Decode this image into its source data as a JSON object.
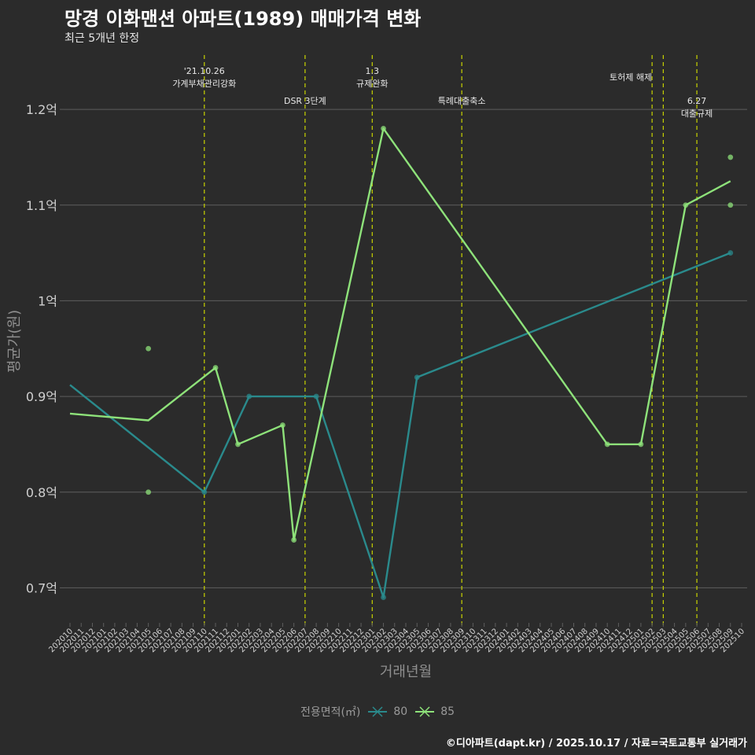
{
  "title": "망경 이화맨션 아파트(1989) 매매가격 변화",
  "subtitle": "최근 5개년 한정",
  "caption": "©디아파트(dapt.kr) / 2025.10.17 / 자료=국토교통부 실거래가",
  "colors": {
    "background": "#2b2b2b",
    "grid": "#5e5e5e",
    "event_line": "#c8d400",
    "series_80": "#2a8a8c",
    "series_85": "#8ee27a",
    "axis_text": "#d0d0d0",
    "axis_title": "#8f8f8f"
  },
  "chart_data": {
    "type": "line",
    "title": "망경 이화맨션 아파트(1989) 매매가격 변화",
    "subtitle": "최근 5개년 한정",
    "xlabel": "거래년월",
    "ylabel": "평균가(원)",
    "ylim": [
      0.665,
      1.265
    ],
    "y_ticks": [
      0.7,
      0.8,
      0.9,
      1.0,
      1.1,
      1.2
    ],
    "y_tick_labels": [
      "0.7억",
      "0.8억",
      "0.9억",
      "1억",
      "1.1억",
      "1.2억"
    ],
    "x_categories": [
      "202010",
      "202011",
      "202012",
      "202101",
      "202102",
      "202103",
      "202104",
      "202105",
      "202106",
      "202107",
      "202108",
      "202109",
      "202110",
      "202111",
      "202112",
      "202201",
      "202202",
      "202203",
      "202204",
      "202205",
      "202206",
      "202207",
      "202208",
      "202209",
      "202210",
      "202211",
      "202212",
      "202301",
      "202302",
      "202303",
      "202304",
      "202305",
      "202306",
      "202307",
      "202308",
      "202309",
      "202310",
      "202311",
      "202312",
      "202401",
      "202402",
      "202403",
      "202404",
      "202405",
      "202406",
      "202407",
      "202408",
      "202409",
      "202410",
      "202411",
      "202412",
      "202501",
      "202502",
      "202503",
      "202504",
      "202505",
      "202506",
      "202507",
      "202508",
      "202509",
      "202510"
    ],
    "legend_title": "전용면적(㎡)",
    "series": [
      {
        "name": "80",
        "color": "#2a8a8c",
        "line": [
          {
            "x": "202010",
            "y": 0.912
          },
          {
            "x": "202110",
            "y": 0.8
          },
          {
            "x": "202202",
            "y": 0.9
          },
          {
            "x": "202208",
            "y": 0.9
          },
          {
            "x": "202302",
            "y": 0.69
          },
          {
            "x": "202305",
            "y": 0.92
          },
          {
            "x": "202509",
            "y": 1.05
          }
        ],
        "points": [
          {
            "x": "202110",
            "y": 0.8
          },
          {
            "x": "202202",
            "y": 0.9
          },
          {
            "x": "202208",
            "y": 0.9
          },
          {
            "x": "202302",
            "y": 0.69
          },
          {
            "x": "202305",
            "y": 0.92
          },
          {
            "x": "202509",
            "y": 1.05
          }
        ]
      },
      {
        "name": "85",
        "color": "#8ee27a",
        "line": [
          {
            "x": "202010",
            "y": 0.882
          },
          {
            "x": "202105",
            "y": 0.875
          },
          {
            "x": "202111",
            "y": 0.93
          },
          {
            "x": "202201",
            "y": 0.85
          },
          {
            "x": "202205",
            "y": 0.87
          },
          {
            "x": "202206",
            "y": 0.75
          },
          {
            "x": "202302",
            "y": 1.18
          },
          {
            "x": "202410",
            "y": 0.85
          },
          {
            "x": "202501",
            "y": 0.85
          },
          {
            "x": "202505",
            "y": 1.1
          },
          {
            "x": "202509",
            "y": 1.125
          }
        ],
        "points": [
          {
            "x": "202105",
            "y": 0.95
          },
          {
            "x": "202105",
            "y": 0.8
          },
          {
            "x": "202111",
            "y": 0.93
          },
          {
            "x": "202201",
            "y": 0.85
          },
          {
            "x": "202205",
            "y": 0.87
          },
          {
            "x": "202206",
            "y": 0.75
          },
          {
            "x": "202302",
            "y": 1.18
          },
          {
            "x": "202410",
            "y": 0.85
          },
          {
            "x": "202501",
            "y": 0.85
          },
          {
            "x": "202505",
            "y": 1.1
          },
          {
            "x": "202509",
            "y": 1.15
          },
          {
            "x": "202509",
            "y": 1.1
          }
        ]
      }
    ],
    "events": [
      {
        "x": "202110",
        "lines": [
          "'21.10.26",
          "가계부채관리강화"
        ],
        "row": 0
      },
      {
        "x": "202207",
        "lines": [
          "DSR 3단계"
        ],
        "row": 1
      },
      {
        "x": "202301",
        "lines": [
          "1.3",
          "규제완화"
        ],
        "row": 0
      },
      {
        "x": "202309",
        "lines": [
          "특례대출축소"
        ],
        "row": 1
      },
      {
        "x": "202502",
        "lines": [
          "토허제 해제"
        ],
        "row": 0,
        "anchor": "right"
      },
      {
        "x": "202503",
        "lines": [],
        "row": 0
      },
      {
        "x": "202506",
        "lines": [
          "6.27",
          "대출규제"
        ],
        "row": 1
      }
    ]
  }
}
